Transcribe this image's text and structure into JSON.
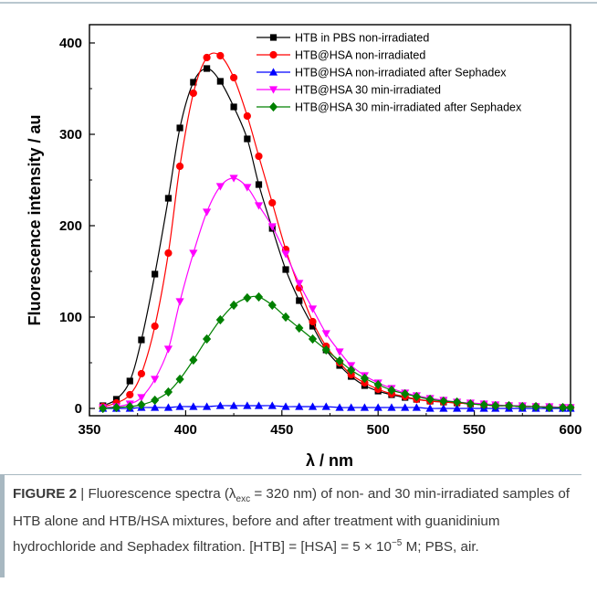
{
  "chart_data": {
    "type": "line",
    "xlabel": "λ / nm",
    "ylabel": "Fluorescence intensity / au",
    "xlim": [
      350,
      600
    ],
    "ylim": [
      -8,
      420
    ],
    "xticks": [
      "350",
      "400",
      "450",
      "500",
      "550",
      "600"
    ],
    "yticks": [
      "0",
      "100",
      "200",
      "300",
      "400"
    ],
    "legend_position": "top-right",
    "series": [
      {
        "name": "HTB in PBS non-irradiated",
        "color": "#000000",
        "marker": "square",
        "x": [
          357,
          364,
          371,
          377,
          384,
          391,
          397,
          404,
          411,
          418,
          425,
          432,
          438,
          445,
          452,
          459,
          466,
          473,
          480,
          486,
          493,
          500,
          507,
          514,
          520,
          527,
          534,
          541,
          548,
          555,
          561,
          568,
          575,
          582,
          589,
          596,
          600
        ],
        "y": [
          3,
          10,
          30,
          75,
          147,
          230,
          307,
          357,
          372,
          358,
          330,
          295,
          245,
          197,
          152,
          118,
          90,
          64,
          47,
          35,
          25,
          19,
          15,
          12,
          10,
          8,
          7,
          6,
          5,
          4,
          3,
          3,
          2,
          2,
          1,
          1,
          1
        ]
      },
      {
        "name": "HTB@HSA non-irradiated",
        "color": "#ff0000",
        "marker": "circle",
        "x": [
          357,
          364,
          371,
          377,
          384,
          391,
          397,
          404,
          411,
          418,
          425,
          432,
          438,
          445,
          452,
          459,
          466,
          473,
          480,
          486,
          493,
          500,
          507,
          514,
          520,
          527,
          534,
          541,
          548,
          555,
          561,
          568,
          575,
          582,
          589,
          596,
          600
        ],
        "y": [
          2,
          6,
          15,
          38,
          90,
          170,
          265,
          345,
          384,
          386,
          362,
          320,
          276,
          225,
          174,
          132,
          95,
          68,
          50,
          37,
          28,
          21,
          16,
          13,
          10,
          8,
          7,
          6,
          5,
          4,
          3,
          3,
          2,
          2,
          1,
          1,
          1
        ]
      },
      {
        "name": "HTB@HSA non-irradiated after Sephadex",
        "color": "#0000ff",
        "marker": "triangle-up",
        "x": [
          357,
          364,
          371,
          377,
          384,
          391,
          397,
          404,
          411,
          418,
          425,
          432,
          438,
          445,
          452,
          459,
          466,
          473,
          480,
          486,
          493,
          500,
          507,
          514,
          520,
          527,
          534,
          541,
          548,
          555,
          561,
          568,
          575,
          582,
          589,
          596,
          600
        ],
        "y": [
          0,
          0,
          0,
          1,
          1,
          1,
          2,
          2,
          2,
          3,
          3,
          3,
          3,
          3,
          2,
          2,
          2,
          2,
          1,
          1,
          1,
          1,
          1,
          1,
          1,
          0,
          0,
          0,
          0,
          0,
          0,
          0,
          0,
          0,
          0,
          0,
          0
        ]
      },
      {
        "name": "HTB@HSA 30 min-irradiated",
        "color": "#ff00ff",
        "marker": "triangle-down",
        "x": [
          357,
          364,
          371,
          377,
          384,
          391,
          397,
          404,
          411,
          418,
          425,
          432,
          438,
          445,
          452,
          459,
          466,
          473,
          480,
          486,
          493,
          500,
          507,
          514,
          520,
          527,
          534,
          541,
          548,
          555,
          561,
          568,
          575,
          582,
          589,
          596,
          600
        ],
        "y": [
          1,
          2,
          5,
          12,
          32,
          65,
          117,
          170,
          215,
          243,
          252,
          242,
          222,
          199,
          169,
          137,
          109,
          82,
          62,
          47,
          36,
          28,
          22,
          17,
          14,
          11,
          9,
          7,
          6,
          5,
          4,
          3,
          3,
          2,
          2,
          1,
          1
        ]
      },
      {
        "name": "HTB@HSA 30 min-irradiated after Sephadex",
        "color": "#008000",
        "marker": "diamond",
        "x": [
          357,
          364,
          371,
          377,
          384,
          391,
          397,
          404,
          411,
          418,
          425,
          432,
          438,
          445,
          452,
          459,
          466,
          473,
          480,
          486,
          493,
          500,
          507,
          514,
          520,
          527,
          534,
          541,
          548,
          555,
          561,
          568,
          575,
          582,
          589,
          596,
          600
        ],
        "y": [
          0,
          1,
          2,
          4,
          9,
          18,
          32,
          53,
          76,
          97,
          113,
          121,
          122,
          113,
          100,
          88,
          76,
          64,
          52,
          42,
          33,
          26,
          20,
          16,
          13,
          10,
          8,
          7,
          5,
          4,
          3,
          3,
          2,
          2,
          1,
          1,
          1
        ]
      }
    ]
  },
  "caption": {
    "label": "FIGURE 2",
    "separator": "|",
    "text_a": " Fluorescence spectra (λ",
    "sub_exc": "exc",
    "text_b": " = 320 nm) of non- and 30 min-irradiated samples of HTB alone and HTB/HSA mixtures, before and after treatment with guanidinium hydrochloride and Sephadex filtration. [HTB] = [HSA] = 5 × 10",
    "sup_exp": "−5",
    "text_c": " M; PBS, air."
  }
}
